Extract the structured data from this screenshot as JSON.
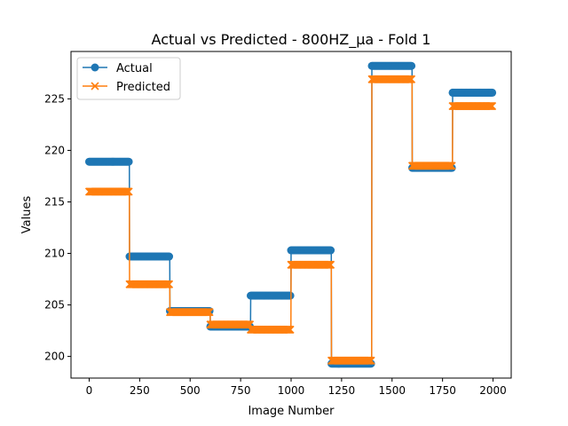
{
  "chart_data": {
    "type": "line",
    "title": "Actual vs Predicted - 800HZ_µa - Fold 1",
    "xlabel": "Image Number",
    "ylabel": "Values",
    "xlim": [
      -90,
      2090
    ],
    "ylim": [
      197.9,
      229.6
    ],
    "xticks": [
      0,
      250,
      500,
      750,
      1000,
      1250,
      1500,
      1750,
      2000
    ],
    "yticks": [
      200,
      205,
      210,
      215,
      220,
      225
    ],
    "grid": false,
    "legend_position": "top-left",
    "segments": [
      {
        "start": 0,
        "end": 200,
        "actual": 218.9,
        "predicted": 216.0
      },
      {
        "start": 200,
        "end": 400,
        "actual": 209.7,
        "predicted": 207.0
      },
      {
        "start": 400,
        "end": 600,
        "actual": 204.4,
        "predicted": 204.3
      },
      {
        "start": 600,
        "end": 800,
        "actual": 202.9,
        "predicted": 203.1
      },
      {
        "start": 800,
        "end": 1000,
        "actual": 205.9,
        "predicted": 202.6
      },
      {
        "start": 1000,
        "end": 1200,
        "actual": 210.3,
        "predicted": 208.9
      },
      {
        "start": 1200,
        "end": 1400,
        "actual": 199.3,
        "predicted": 199.6
      },
      {
        "start": 1400,
        "end": 1600,
        "actual": 228.2,
        "predicted": 226.9
      },
      {
        "start": 1600,
        "end": 1800,
        "actual": 218.3,
        "predicted": 218.5
      },
      {
        "start": 1800,
        "end": 2000,
        "actual": 225.6,
        "predicted": 224.3
      }
    ],
    "series": [
      {
        "name": "Actual",
        "color": "#1f77b4",
        "marker": "circle"
      },
      {
        "name": "Predicted",
        "color": "#ff7f0e",
        "marker": "x"
      }
    ]
  }
}
